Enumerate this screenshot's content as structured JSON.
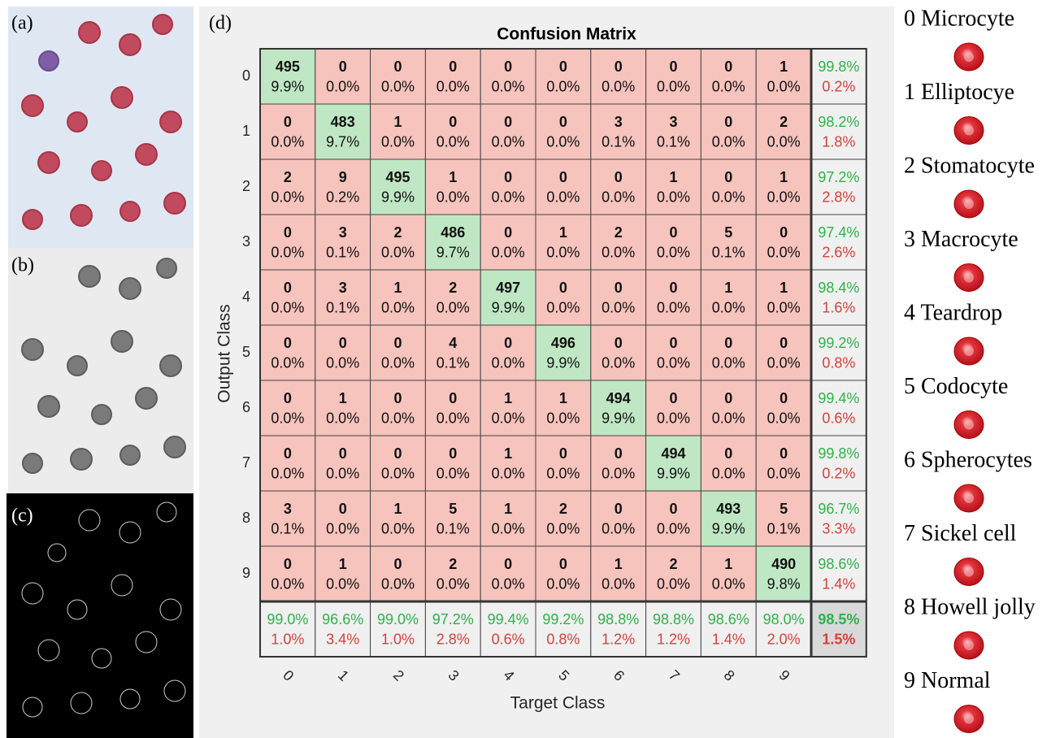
{
  "panels": {
    "a": "(a)",
    "b": "(b)",
    "c": "(c)",
    "d": "(d)"
  },
  "matrix": {
    "title": "Confusion Matrix",
    "x_label": "Target Class",
    "y_label": "Output Class",
    "row_labels": [
      "0",
      "1",
      "2",
      "3",
      "4",
      "5",
      "6",
      "7",
      "8",
      "9"
    ],
    "column_labels": [
      "0",
      "1",
      "2",
      "3",
      "4",
      "5",
      "6",
      "7",
      "8",
      "9"
    ],
    "counts": [
      [
        495,
        0,
        0,
        0,
        0,
        0,
        0,
        0,
        0,
        1
      ],
      [
        0,
        483,
        1,
        0,
        0,
        0,
        3,
        3,
        0,
        2
      ],
      [
        2,
        9,
        495,
        1,
        0,
        0,
        0,
        1,
        0,
        1
      ],
      [
        0,
        3,
        2,
        486,
        0,
        1,
        2,
        0,
        5,
        0
      ],
      [
        0,
        3,
        1,
        2,
        497,
        0,
        0,
        0,
        1,
        1
      ],
      [
        0,
        0,
        0,
        4,
        0,
        496,
        0,
        0,
        0,
        0
      ],
      [
        0,
        1,
        0,
        0,
        1,
        1,
        494,
        0,
        0,
        0
      ],
      [
        0,
        0,
        0,
        0,
        1,
        0,
        0,
        494,
        0,
        0
      ],
      [
        3,
        0,
        1,
        5,
        1,
        2,
        0,
        0,
        493,
        5
      ],
      [
        0,
        1,
        0,
        2,
        0,
        0,
        1,
        2,
        1,
        490
      ]
    ],
    "percents": [
      [
        "9.9%",
        "0.0%",
        "0.0%",
        "0.0%",
        "0.0%",
        "0.0%",
        "0.0%",
        "0.0%",
        "0.0%",
        "0.0%"
      ],
      [
        "0.0%",
        "9.7%",
        "0.0%",
        "0.0%",
        "0.0%",
        "0.0%",
        "0.1%",
        "0.1%",
        "0.0%",
        "0.0%"
      ],
      [
        "0.0%",
        "0.2%",
        "9.9%",
        "0.0%",
        "0.0%",
        "0.0%",
        "0.0%",
        "0.0%",
        "0.0%",
        "0.0%"
      ],
      [
        "0.0%",
        "0.1%",
        "0.0%",
        "9.7%",
        "0.0%",
        "0.0%",
        "0.0%",
        "0.0%",
        "0.1%",
        "0.0%"
      ],
      [
        "0.0%",
        "0.1%",
        "0.0%",
        "0.0%",
        "9.9%",
        "0.0%",
        "0.0%",
        "0.0%",
        "0.0%",
        "0.0%"
      ],
      [
        "0.0%",
        "0.0%",
        "0.0%",
        "0.1%",
        "0.0%",
        "9.9%",
        "0.0%",
        "0.0%",
        "0.0%",
        "0.0%"
      ],
      [
        "0.0%",
        "0.0%",
        "0.0%",
        "0.0%",
        "0.0%",
        "0.0%",
        "9.9%",
        "0.0%",
        "0.0%",
        "0.0%"
      ],
      [
        "0.0%",
        "0.0%",
        "0.0%",
        "0.0%",
        "0.0%",
        "0.0%",
        "0.0%",
        "9.9%",
        "0.0%",
        "0.0%"
      ],
      [
        "0.1%",
        "0.0%",
        "0.0%",
        "0.1%",
        "0.0%",
        "0.0%",
        "0.0%",
        "0.0%",
        "9.9%",
        "0.1%"
      ],
      [
        "0.0%",
        "0.0%",
        "0.0%",
        "0.0%",
        "0.0%",
        "0.0%",
        "0.0%",
        "0.0%",
        "0.0%",
        "9.8%"
      ]
    ],
    "row_summary": [
      [
        "99.8%",
        "0.2%"
      ],
      [
        "98.2%",
        "1.8%"
      ],
      [
        "97.2%",
        "2.8%"
      ],
      [
        "97.4%",
        "2.6%"
      ],
      [
        "98.4%",
        "1.6%"
      ],
      [
        "99.2%",
        "0.8%"
      ],
      [
        "99.4%",
        "0.6%"
      ],
      [
        "99.8%",
        "0.2%"
      ],
      [
        "96.7%",
        "3.3%"
      ],
      [
        "98.6%",
        "1.4%"
      ]
    ],
    "column_summary": [
      [
        "99.0%",
        "1.0%"
      ],
      [
        "96.6%",
        "3.4%"
      ],
      [
        "99.0%",
        "1.0%"
      ],
      [
        "97.2%",
        "2.8%"
      ],
      [
        "99.4%",
        "0.6%"
      ],
      [
        "99.2%",
        "0.8%"
      ],
      [
        "98.8%",
        "1.2%"
      ],
      [
        "98.8%",
        "1.2%"
      ],
      [
        "98.6%",
        "1.4%"
      ],
      [
        "98.0%",
        "2.0%"
      ]
    ],
    "total": [
      "98.5%",
      "1.5%"
    ]
  },
  "classes": [
    "0 Microcyte",
    "1 Elliptocye",
    "2 Stomatocyte",
    "3 Macrocyte",
    "4 Teardrop",
    "5 Codocyte",
    "6 Spherocytes",
    "7 Sickel cell",
    "8 Howell jolly",
    "9 Normal"
  ]
}
